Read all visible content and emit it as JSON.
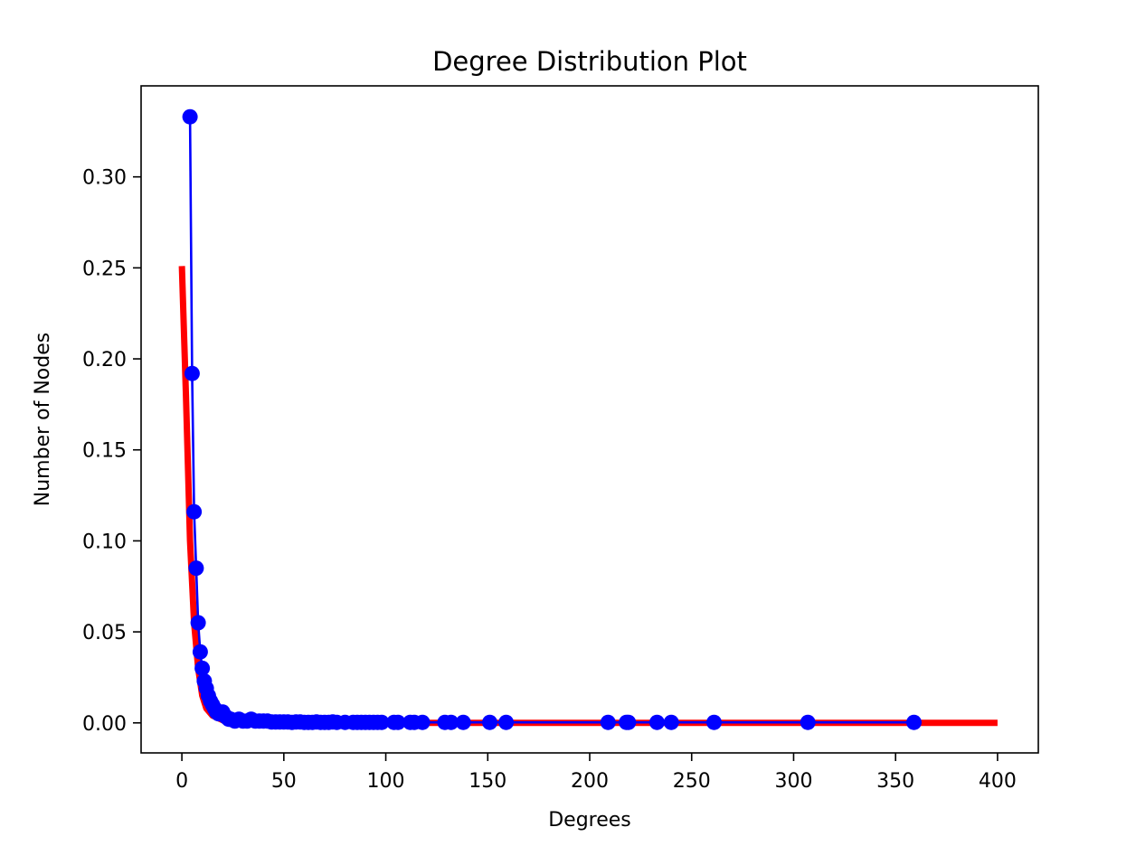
{
  "chart_data": {
    "type": "line",
    "title": "Degree Distribution Plot",
    "xlabel": "Degrees",
    "ylabel": "Number of Nodes",
    "xlim": [
      -20,
      420
    ],
    "ylim": [
      -0.0165,
      0.35
    ],
    "xticks": [
      0,
      50,
      100,
      150,
      200,
      250,
      300,
      350,
      400
    ],
    "yticks": [
      0.0,
      0.05,
      0.1,
      0.15,
      0.2,
      0.25,
      0.3
    ],
    "xtick_labels": [
      "0",
      "50",
      "100",
      "150",
      "200",
      "250",
      "300",
      "350",
      "400"
    ],
    "ytick_labels": [
      "0.00",
      "0.05",
      "0.10",
      "0.15",
      "0.20",
      "0.25",
      "0.30"
    ],
    "grid": false,
    "legend": false,
    "colors": {
      "series": "#0000ff",
      "fit": "#ff0000"
    },
    "series": [
      {
        "color": "#0000ff",
        "marker": "circle",
        "points": [
          [
            4,
            0.333
          ],
          [
            5,
            0.192
          ],
          [
            6,
            0.116
          ],
          [
            7,
            0.085
          ],
          [
            8,
            0.055
          ],
          [
            9,
            0.039
          ],
          [
            10,
            0.03
          ],
          [
            11,
            0.023
          ],
          [
            12,
            0.019
          ],
          [
            13,
            0.015
          ],
          [
            14,
            0.012
          ],
          [
            15,
            0.01
          ],
          [
            16,
            0.008
          ],
          [
            17,
            0.006
          ],
          [
            18,
            0.005
          ],
          [
            20,
            0.006
          ],
          [
            21,
            0.004
          ],
          [
            22,
            0.003
          ],
          [
            23,
            0.002
          ],
          [
            24,
            0.002
          ],
          [
            26,
            0.001
          ],
          [
            28,
            0.002
          ],
          [
            30,
            0.001
          ],
          [
            32,
            0.001
          ],
          [
            34,
            0.002
          ],
          [
            36,
            0.001
          ],
          [
            38,
            0.001
          ],
          [
            40,
            0.001
          ],
          [
            42,
            0.001
          ],
          [
            44,
            0.0005
          ],
          [
            46,
            0.0005
          ],
          [
            48,
            0.0005
          ],
          [
            50,
            0.0005
          ],
          [
            52,
            0.0005
          ],
          [
            54,
            0.0003
          ],
          [
            56,
            0.0005
          ],
          [
            58,
            0.0005
          ],
          [
            60,
            0.0003
          ],
          [
            62,
            0.0003
          ],
          [
            64,
            0.0003
          ],
          [
            66,
            0.0005
          ],
          [
            68,
            0.0003
          ],
          [
            70,
            0.0003
          ],
          [
            72,
            0.0003
          ],
          [
            74,
            0.0005
          ],
          [
            76,
            0.0003
          ],
          [
            80,
            0.0003
          ],
          [
            84,
            0.0003
          ],
          [
            86,
            0.0003
          ],
          [
            88,
            0.0003
          ],
          [
            90,
            0.0003
          ],
          [
            92,
            0.0003
          ],
          [
            94,
            0.0003
          ],
          [
            96,
            0.0003
          ],
          [
            98,
            0.0003
          ],
          [
            104,
            0.0003
          ],
          [
            106,
            0.0003
          ],
          [
            112,
            0.0003
          ],
          [
            114,
            0.0003
          ],
          [
            118,
            0.0003
          ],
          [
            129,
            0.0003
          ],
          [
            132,
            0.0003
          ],
          [
            138,
            0.0003
          ],
          [
            151,
            0.0003
          ],
          [
            159,
            0.0003
          ],
          [
            209,
            0.0003
          ],
          [
            218,
            0.0003
          ],
          [
            219,
            0.0003
          ],
          [
            233,
            0.0003
          ],
          [
            240,
            0.0003
          ],
          [
            261,
            0.0003
          ],
          [
            307,
            0.0003
          ],
          [
            359,
            0.0003
          ]
        ]
      },
      {
        "color": "#ff0000",
        "marker": "none",
        "points": [
          [
            0,
            0.251
          ],
          [
            2,
            0.18
          ],
          [
            4,
            0.1
          ],
          [
            6,
            0.055
          ],
          [
            8,
            0.03
          ],
          [
            10,
            0.015
          ],
          [
            12,
            0.008
          ],
          [
            15,
            0.004
          ],
          [
            20,
            0.0015
          ],
          [
            30,
            0.0004
          ],
          [
            50,
            0.0001
          ],
          [
            100,
            0.0
          ],
          [
            200,
            0.0
          ],
          [
            300,
            0.0
          ],
          [
            400,
            0.0
          ]
        ]
      }
    ]
  }
}
